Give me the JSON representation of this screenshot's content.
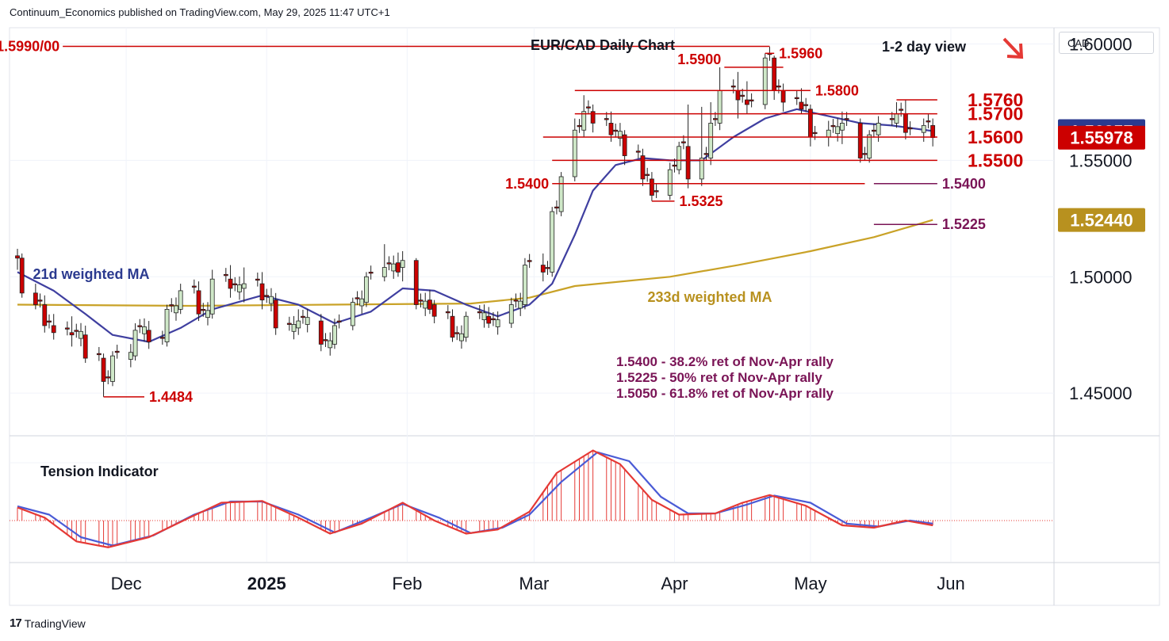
{
  "header": {
    "publisher_line": "Continuum_Economics published on TradingView.com, May 29, 2025 11:47 UTC+1"
  },
  "footer": {
    "brand": "TradingView"
  },
  "currency_selector": {
    "label": "CAD"
  },
  "colors": {
    "bull_body": "#cfe8c8",
    "bear_body": "#cc0000",
    "wick": "#222222",
    "ma21": "#3f3fa0",
    "ma233": "#c9a227",
    "level_red": "#cc0000",
    "level_purple": "#7a1456",
    "tension_red": "#e53935",
    "tension_blue": "#4a5bd6",
    "price_blue": "#2b3a8f",
    "price_red": "#cc0000",
    "price_gold": "#b8911f"
  },
  "chart_data": {
    "type": "candlestick",
    "title": "EUR/CAD Daily Chart",
    "view_label": "1-2 day view",
    "view_direction": "down-arrow",
    "y_axis": {
      "range": [
        1.432,
        1.607
      ],
      "ticks": [
        1.45,
        1.5,
        1.55,
        1.6
      ],
      "tick_labels": [
        "1.45000",
        "1.50000",
        "1.55000",
        "1.60000"
      ]
    },
    "x_axis": {
      "range": [
        "2024-11-07",
        "2025-06-22"
      ],
      "ticks": [
        {
          "date": "2024-12-01",
          "label": "Dec"
        },
        {
          "date": "2025-01-01",
          "label": "2025"
        },
        {
          "date": "2025-02-01",
          "label": "Feb"
        },
        {
          "date": "2025-03-01",
          "label": "Mar"
        },
        {
          "date": "2025-04-01",
          "label": "Apr"
        },
        {
          "date": "2025-05-01",
          "label": "May"
        },
        {
          "date": "2025-06-01",
          "label": "Jun"
        }
      ]
    },
    "price_labels": [
      {
        "value": 1.56257,
        "text": "1.56257",
        "color": "#2b3a8f"
      },
      {
        "value": 1.55978,
        "text": "1.55978",
        "color": "#cc0000"
      },
      {
        "value": 1.5244,
        "text": "1.52440",
        "color": "#b8911f"
      }
    ],
    "ohlc_anchors": [
      [
        "2024-11-07",
        1.509,
        1.512,
        1.503,
        1.508
      ],
      [
        "2024-11-08",
        1.508,
        1.51,
        1.491,
        1.493
      ],
      [
        "2024-11-11",
        1.493,
        1.497,
        1.486,
        1.488
      ],
      [
        "2024-11-13",
        1.488,
        1.492,
        1.476,
        1.479
      ],
      [
        "2024-11-15",
        1.479,
        1.484,
        1.473,
        1.476
      ],
      [
        "2024-11-19",
        1.476,
        1.483,
        1.47,
        1.475
      ],
      [
        "2024-11-22",
        1.475,
        1.479,
        1.463,
        1.465
      ],
      [
        "2024-11-26",
        1.465,
        1.467,
        1.4484,
        1.455
      ],
      [
        "2024-11-28",
        1.455,
        1.468,
        1.453,
        1.466
      ],
      [
        "2024-12-03",
        1.466,
        1.48,
        1.464,
        1.477
      ],
      [
        "2024-12-06",
        1.477,
        1.481,
        1.469,
        1.472
      ],
      [
        "2024-12-10",
        1.472,
        1.488,
        1.47,
        1.486
      ],
      [
        "2024-12-13",
        1.486,
        1.497,
        1.484,
        1.494
      ],
      [
        "2024-12-17",
        1.494,
        1.498,
        1.481,
        1.484
      ],
      [
        "2024-12-20",
        1.484,
        1.503,
        1.482,
        1.499
      ],
      [
        "2024-12-24",
        1.499,
        1.505,
        1.491,
        1.495
      ],
      [
        "2024-12-27",
        1.495,
        1.504,
        1.489,
        1.497
      ],
      [
        "2024-12-31",
        1.497,
        1.502,
        1.486,
        1.49
      ],
      [
        "2025-01-03",
        1.49,
        1.493,
        1.475,
        1.478
      ],
      [
        "2025-01-08",
        1.478,
        1.486,
        1.475,
        1.481
      ],
      [
        "2025-01-13",
        1.481,
        1.484,
        1.468,
        1.471
      ],
      [
        "2025-01-16",
        1.471,
        1.482,
        1.469,
        1.479
      ],
      [
        "2025-01-20",
        1.479,
        1.491,
        1.477,
        1.489
      ],
      [
        "2025-01-23",
        1.489,
        1.502,
        1.487,
        1.5
      ],
      [
        "2025-01-27",
        1.5,
        1.514,
        1.498,
        1.504
      ],
      [
        "2025-01-31",
        1.504,
        1.511,
        1.498,
        1.507
      ],
      [
        "2025-02-03",
        1.507,
        1.508,
        1.486,
        1.488
      ],
      [
        "2025-02-07",
        1.488,
        1.49,
        1.48,
        1.483
      ],
      [
        "2025-02-11",
        1.483,
        1.486,
        1.472,
        1.474
      ],
      [
        "2025-02-14",
        1.474,
        1.485,
        1.472,
        1.483
      ],
      [
        "2025-02-19",
        1.483,
        1.487,
        1.478,
        1.48
      ],
      [
        "2025-02-24",
        1.48,
        1.491,
        1.478,
        1.488
      ],
      [
        "2025-02-27",
        1.488,
        1.508,
        1.486,
        1.505
      ],
      [
        "2025-03-03",
        1.505,
        1.51,
        1.498,
        1.502
      ],
      [
        "2025-03-05",
        1.502,
        1.53,
        1.5,
        1.528
      ],
      [
        "2025-03-07",
        1.528,
        1.545,
        1.526,
        1.543
      ],
      [
        "2025-03-10",
        1.543,
        1.568,
        1.541,
        1.563
      ],
      [
        "2025-03-12",
        1.563,
        1.578,
        1.56,
        1.571
      ],
      [
        "2025-03-14",
        1.571,
        1.574,
        1.562,
        1.566
      ],
      [
        "2025-03-18",
        1.566,
        1.571,
        1.558,
        1.561
      ],
      [
        "2025-03-21",
        1.561,
        1.563,
        1.548,
        1.552
      ],
      [
        "2025-03-25",
        1.552,
        1.555,
        1.539,
        1.542
      ],
      [
        "2025-03-27",
        1.542,
        1.545,
        1.5325,
        1.535
      ],
      [
        "2025-03-31",
        1.535,
        1.549,
        1.533,
        1.546
      ],
      [
        "2025-04-02",
        1.546,
        1.558,
        1.544,
        1.556
      ],
      [
        "2025-04-04",
        1.556,
        1.574,
        1.538,
        1.542
      ],
      [
        "2025-04-07",
        1.542,
        1.573,
        1.539,
        1.551
      ],
      [
        "2025-04-09",
        1.551,
        1.575,
        1.548,
        1.566
      ],
      [
        "2025-04-11",
        1.566,
        1.59,
        1.563,
        1.58
      ],
      [
        "2025-04-15",
        1.58,
        1.588,
        1.568,
        1.576
      ],
      [
        "2025-04-17",
        1.576,
        1.584,
        1.57,
        1.574
      ],
      [
        "2025-04-21",
        1.574,
        1.596,
        1.572,
        1.594
      ],
      [
        "2025-04-23",
        1.594,
        1.595,
        1.576,
        1.58
      ],
      [
        "2025-04-25",
        1.58,
        1.583,
        1.571,
        1.575
      ],
      [
        "2025-04-29",
        1.575,
        1.581,
        1.57,
        1.572
      ],
      [
        "2025-05-01",
        1.572,
        1.574,
        1.556,
        1.56
      ],
      [
        "2025-05-05",
        1.56,
        1.567,
        1.556,
        1.563
      ],
      [
        "2025-05-08",
        1.563,
        1.571,
        1.557,
        1.566
      ],
      [
        "2025-05-12",
        1.566,
        1.568,
        1.549,
        1.551
      ],
      [
        "2025-05-14",
        1.551,
        1.563,
        1.549,
        1.561
      ],
      [
        "2025-05-16",
        1.561,
        1.569,
        1.558,
        1.566
      ],
      [
        "2025-05-20",
        1.566,
        1.575,
        1.564,
        1.57
      ],
      [
        "2025-05-22",
        1.57,
        1.576,
        1.559,
        1.562
      ],
      [
        "2025-05-26",
        1.562,
        1.568,
        1.558,
        1.565
      ],
      [
        "2025-05-28",
        1.565,
        1.568,
        1.556,
        1.5598
      ]
    ],
    "ma21_points": [
      [
        "2024-11-07",
        1.502
      ],
      [
        "2024-11-15",
        1.494
      ],
      [
        "2024-11-22",
        1.484
      ],
      [
        "2024-11-28",
        1.475
      ],
      [
        "2024-12-06",
        1.472
      ],
      [
        "2024-12-13",
        1.478
      ],
      [
        "2024-12-20",
        1.486
      ],
      [
        "2024-12-31",
        1.492
      ],
      [
        "2025-01-08",
        1.488
      ],
      [
        "2025-01-16",
        1.48
      ],
      [
        "2025-01-24",
        1.485
      ],
      [
        "2025-01-31",
        1.495
      ],
      [
        "2025-02-07",
        1.494
      ],
      [
        "2025-02-14",
        1.488
      ],
      [
        "2025-02-21",
        1.483
      ],
      [
        "2025-02-28",
        1.488
      ],
      [
        "2025-03-05",
        1.497
      ],
      [
        "2025-03-10",
        1.518
      ],
      [
        "2025-03-14",
        1.537
      ],
      [
        "2025-03-19",
        1.548
      ],
      [
        "2025-03-25",
        1.551
      ],
      [
        "2025-03-31",
        1.55
      ],
      [
        "2025-04-07",
        1.55
      ],
      [
        "2025-04-14",
        1.56
      ],
      [
        "2025-04-21",
        1.568
      ],
      [
        "2025-04-28",
        1.572
      ],
      [
        "2025-05-05",
        1.569
      ],
      [
        "2025-05-12",
        1.566
      ],
      [
        "2025-05-19",
        1.565
      ],
      [
        "2025-05-28",
        1.5626
      ]
    ],
    "ma233_points": [
      [
        "2024-11-07",
        1.488
      ],
      [
        "2024-12-15",
        1.4875
      ],
      [
        "2025-01-15",
        1.488
      ],
      [
        "2025-02-15",
        1.4885
      ],
      [
        "2025-02-28",
        1.491
      ],
      [
        "2025-03-10",
        1.496
      ],
      [
        "2025-03-31",
        1.5
      ],
      [
        "2025-04-15",
        1.505
      ],
      [
        "2025-05-01",
        1.511
      ],
      [
        "2025-05-15",
        1.517
      ],
      [
        "2025-05-28",
        1.5244
      ]
    ],
    "levels": [
      {
        "value": 1.599,
        "text": "1.5990/00",
        "from": "2024-11-17",
        "to": "2025-04-22",
        "color": "#cc0000",
        "label_side": "left"
      },
      {
        "value": 1.596,
        "text": "1.5960",
        "from": "2025-04-21",
        "to": "2025-04-23",
        "color": "#cc0000",
        "label_side": "right"
      },
      {
        "value": 1.59,
        "text": "1.5900",
        "from": "2025-04-12",
        "to": "2025-04-25",
        "color": "#cc0000",
        "label_side": "above"
      },
      {
        "value": 1.58,
        "text": "1.5800",
        "from": "2025-03-10",
        "to": "2025-05-01",
        "color": "#cc0000",
        "label_side": "right"
      },
      {
        "value": 1.576,
        "text": "1.5760",
        "from": "2025-05-20",
        "to": "2025-05-29",
        "color": "#cc0000",
        "label_side": "right_big"
      },
      {
        "value": 1.57,
        "text": "1.5700",
        "from": "2025-03-10",
        "to": "2025-05-29",
        "color": "#cc0000",
        "label_side": "right_big"
      },
      {
        "value": 1.56,
        "text": "1.5600",
        "from": "2025-03-03",
        "to": "2025-05-29",
        "color": "#cc0000",
        "label_side": "right_big"
      },
      {
        "value": 1.55,
        "text": "1.5500",
        "from": "2025-03-05",
        "to": "2025-05-29",
        "color": "#cc0000",
        "label_side": "right_big"
      },
      {
        "value": 1.54,
        "text": "1.5400",
        "from": "2025-03-05",
        "to": "2025-05-13",
        "color": "#cc0000",
        "label_side": "left"
      },
      {
        "value": 1.54,
        "text": "1.5400",
        "from": "2025-05-15",
        "to": "2025-05-29",
        "color": "#7a1456",
        "label_side": "right"
      },
      {
        "value": 1.5325,
        "text": "1.5325",
        "from": "2025-03-27",
        "to": "2025-04-01",
        "color": "#cc0000",
        "label_side": "right"
      },
      {
        "value": 1.5225,
        "text": "1.5225",
        "from": "2025-05-15",
        "to": "2025-05-29",
        "color": "#7a1456",
        "label_side": "right"
      },
      {
        "value": 1.4484,
        "text": "1.4484",
        "from": "2024-11-26",
        "to": "2024-12-05",
        "color": "#cc0000",
        "label_side": "right"
      }
    ],
    "annotations": [
      {
        "text": "21d weighted MA",
        "color": "#2b3a8f"
      },
      {
        "text": "233d weighted MA",
        "color": "#b8911f"
      }
    ],
    "notes": [
      "1.5400 - 38.2% ret of Nov-Apr rally",
      "1.5225 - 50% ret of Nov-Apr rally",
      "1.5050 - 61.8% ret of Nov-Apr rally"
    ],
    "tension": {
      "title": "Tension Indicator",
      "red_points": [
        [
          "2024-11-07",
          0.22
        ],
        [
          "2024-11-13",
          0.05
        ],
        [
          "2024-11-20",
          -0.35
        ],
        [
          "2024-11-27",
          -0.45
        ],
        [
          "2024-12-06",
          -0.28
        ],
        [
          "2024-12-15",
          0.05
        ],
        [
          "2024-12-22",
          0.3
        ],
        [
          "2024-12-31",
          0.33
        ],
        [
          "2025-01-08",
          0.05
        ],
        [
          "2025-01-15",
          -0.22
        ],
        [
          "2025-01-22",
          -0.05
        ],
        [
          "2025-01-31",
          0.3
        ],
        [
          "2025-02-07",
          0.0
        ],
        [
          "2025-02-14",
          -0.22
        ],
        [
          "2025-02-21",
          -0.15
        ],
        [
          "2025-02-28",
          0.15
        ],
        [
          "2025-03-06",
          0.8
        ],
        [
          "2025-03-14",
          1.18
        ],
        [
          "2025-03-20",
          0.95
        ],
        [
          "2025-03-27",
          0.35
        ],
        [
          "2025-04-02",
          0.1
        ],
        [
          "2025-04-10",
          0.12
        ],
        [
          "2025-04-16",
          0.3
        ],
        [
          "2025-04-22",
          0.43
        ],
        [
          "2025-04-30",
          0.25
        ],
        [
          "2025-05-08",
          -0.08
        ],
        [
          "2025-05-15",
          -0.12
        ],
        [
          "2025-05-22",
          0.0
        ],
        [
          "2025-05-28",
          -0.08
        ]
      ],
      "blue_points": [
        [
          "2024-11-07",
          0.24
        ],
        [
          "2024-11-14",
          0.1
        ],
        [
          "2024-11-21",
          -0.28
        ],
        [
          "2024-11-28",
          -0.42
        ],
        [
          "2024-12-07",
          -0.25
        ],
        [
          "2024-12-16",
          0.1
        ],
        [
          "2024-12-24",
          0.32
        ],
        [
          "2024-12-31",
          0.32
        ],
        [
          "2025-01-08",
          0.1
        ],
        [
          "2025-01-16",
          -0.2
        ],
        [
          "2025-01-24",
          0.05
        ],
        [
          "2025-01-31",
          0.28
        ],
        [
          "2025-02-08",
          0.05
        ],
        [
          "2025-02-15",
          -0.21
        ],
        [
          "2025-02-22",
          -0.12
        ],
        [
          "2025-02-28",
          0.1
        ],
        [
          "2025-03-07",
          0.65
        ],
        [
          "2025-03-15",
          1.15
        ],
        [
          "2025-03-22",
          1.0
        ],
        [
          "2025-03-29",
          0.4
        ],
        [
          "2025-04-04",
          0.12
        ],
        [
          "2025-04-10",
          0.12
        ],
        [
          "2025-04-17",
          0.27
        ],
        [
          "2025-04-23",
          0.42
        ],
        [
          "2025-05-01",
          0.3
        ],
        [
          "2025-05-09",
          -0.05
        ],
        [
          "2025-05-16",
          -0.1
        ],
        [
          "2025-05-23",
          0.0
        ],
        [
          "2025-05-28",
          -0.05
        ]
      ]
    }
  }
}
